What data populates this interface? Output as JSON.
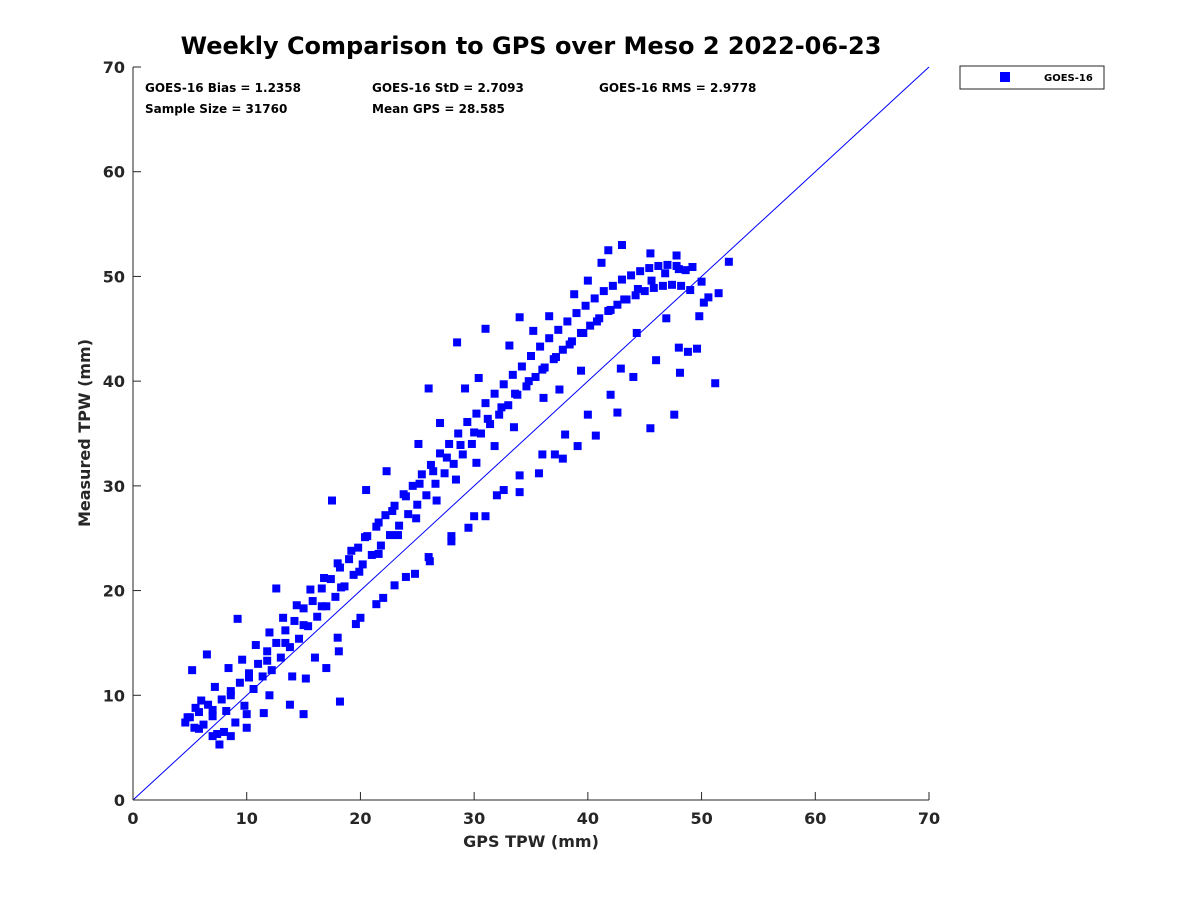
{
  "chart_data": {
    "type": "scatter",
    "title": "Weekly Comparison to GPS over Meso 2 2022-06-23",
    "xlabel": "GPS TPW (mm)",
    "ylabel": "Measured TPW (mm)",
    "xlim": [
      0,
      70
    ],
    "ylim": [
      0,
      70
    ],
    "xticks": [
      0,
      10,
      20,
      30,
      40,
      50,
      60,
      70
    ],
    "yticks": [
      0,
      10,
      20,
      30,
      40,
      50,
      60,
      70
    ],
    "xtick_labels": [
      "0",
      "10",
      "20",
      "30",
      "40",
      "50",
      "60",
      "70"
    ],
    "ytick_labels": [
      "0",
      "10",
      "20",
      "30",
      "40",
      "50",
      "60",
      "70"
    ],
    "grid": false,
    "legend_placement": "outside-top-right",
    "reference_line": {
      "from": [
        0,
        0
      ],
      "to": [
        70,
        70
      ],
      "color": "#0000ff"
    },
    "stats": [
      {
        "text": "GOES-16 Bias = 1.2358"
      },
      {
        "text": "GOES-16 StD = 2.7093"
      },
      {
        "text": "GOES-16 RMS = 2.9778"
      },
      {
        "text": "Sample Size = 31760"
      },
      {
        "text": "Mean GPS = 28.585"
      }
    ],
    "series": [
      {
        "name": "GOES-16",
        "color": "#0000ff",
        "marker": "square",
        "points": [
          [
            4.6,
            7.4
          ],
          [
            5.0,
            7.9
          ],
          [
            5.4,
            6.9
          ],
          [
            5.8,
            8.4
          ],
          [
            6.2,
            7.2
          ],
          [
            6.6,
            9.1
          ],
          [
            7.0,
            8.0
          ],
          [
            7.4,
            6.3
          ],
          [
            7.8,
            9.6
          ],
          [
            8.2,
            8.5
          ],
          [
            8.6,
            10.4
          ],
          [
            9.0,
            7.4
          ],
          [
            9.4,
            11.2
          ],
          [
            9.8,
            9.0
          ],
          [
            10.2,
            12.1
          ],
          [
            10.6,
            10.6
          ],
          [
            11.0,
            13.0
          ],
          [
            11.4,
            11.8
          ],
          [
            11.8,
            14.2
          ],
          [
            12.2,
            12.4
          ],
          [
            12.6,
            15.0
          ],
          [
            13.0,
            13.6
          ],
          [
            13.4,
            16.2
          ],
          [
            13.8,
            14.6
          ],
          [
            14.2,
            17.1
          ],
          [
            14.6,
            15.4
          ],
          [
            15.0,
            18.3
          ],
          [
            15.4,
            16.6
          ],
          [
            15.8,
            19.0
          ],
          [
            16.2,
            17.5
          ],
          [
            16.6,
            20.2
          ],
          [
            17.0,
            18.5
          ],
          [
            17.4,
            21.1
          ],
          [
            17.8,
            19.4
          ],
          [
            18.2,
            22.2
          ],
          [
            18.6,
            20.4
          ],
          [
            19.0,
            23.0
          ],
          [
            19.4,
            21.5
          ],
          [
            19.8,
            24.1
          ],
          [
            20.2,
            22.5
          ],
          [
            20.6,
            25.2
          ],
          [
            21.0,
            23.4
          ],
          [
            21.4,
            26.1
          ],
          [
            21.8,
            24.3
          ],
          [
            22.2,
            27.2
          ],
          [
            22.6,
            25.3
          ],
          [
            23.0,
            28.1
          ],
          [
            23.4,
            26.2
          ],
          [
            23.8,
            29.2
          ],
          [
            24.2,
            27.3
          ],
          [
            24.6,
            30.0
          ],
          [
            25.0,
            28.2
          ],
          [
            25.4,
            31.1
          ],
          [
            25.8,
            29.1
          ],
          [
            26.2,
            32.0
          ],
          [
            26.6,
            30.2
          ],
          [
            27.0,
            33.1
          ],
          [
            27.4,
            31.2
          ],
          [
            27.8,
            34.0
          ],
          [
            28.2,
            32.1
          ],
          [
            28.6,
            35.0
          ],
          [
            29.0,
            33.0
          ],
          [
            29.4,
            36.1
          ],
          [
            29.8,
            34.0
          ],
          [
            30.2,
            36.9
          ],
          [
            30.6,
            35.0
          ],
          [
            31.0,
            37.9
          ],
          [
            31.4,
            35.9
          ],
          [
            31.8,
            38.8
          ],
          [
            32.2,
            36.8
          ],
          [
            32.6,
            39.7
          ],
          [
            33.0,
            37.7
          ],
          [
            33.4,
            40.6
          ],
          [
            33.8,
            38.7
          ],
          [
            34.2,
            41.4
          ],
          [
            34.6,
            39.5
          ],
          [
            35.0,
            42.4
          ],
          [
            35.4,
            40.4
          ],
          [
            35.8,
            43.3
          ],
          [
            36.2,
            41.3
          ],
          [
            36.6,
            44.1
          ],
          [
            37.0,
            42.1
          ],
          [
            37.4,
            44.9
          ],
          [
            37.8,
            43.0
          ],
          [
            38.2,
            45.7
          ],
          [
            38.6,
            43.8
          ],
          [
            39.0,
            46.5
          ],
          [
            39.4,
            44.6
          ],
          [
            39.8,
            47.2
          ],
          [
            40.2,
            45.3
          ],
          [
            40.6,
            47.9
          ],
          [
            41.0,
            46.0
          ],
          [
            41.4,
            48.6
          ],
          [
            41.8,
            46.7
          ],
          [
            42.2,
            49.1
          ],
          [
            42.6,
            47.3
          ],
          [
            43.0,
            49.7
          ],
          [
            43.4,
            47.8
          ],
          [
            43.8,
            50.1
          ],
          [
            44.2,
            48.2
          ],
          [
            44.6,
            50.5
          ],
          [
            45.0,
            48.6
          ],
          [
            45.4,
            50.8
          ],
          [
            45.8,
            48.9
          ],
          [
            46.2,
            51.0
          ],
          [
            46.6,
            49.1
          ],
          [
            47.0,
            51.1
          ],
          [
            47.4,
            49.2
          ],
          [
            47.8,
            51.0
          ],
          [
            48.2,
            49.1
          ],
          [
            48.6,
            50.6
          ],
          [
            49.0,
            48.7
          ],
          [
            6.0,
            9.5
          ],
          [
            7.2,
            10.8
          ],
          [
            8.4,
            12.6
          ],
          [
            9.6,
            13.4
          ],
          [
            10.8,
            14.8
          ],
          [
            12.0,
            16.0
          ],
          [
            13.2,
            17.4
          ],
          [
            14.4,
            18.6
          ],
          [
            15.6,
            20.1
          ],
          [
            16.8,
            21.2
          ],
          [
            18.0,
            22.6
          ],
          [
            19.2,
            23.8
          ],
          [
            20.4,
            25.1
          ],
          [
            21.6,
            26.5
          ],
          [
            22.8,
            27.6
          ],
          [
            24.0,
            29.0
          ],
          [
            25.2,
            30.2
          ],
          [
            26.4,
            31.4
          ],
          [
            27.6,
            32.7
          ],
          [
            28.8,
            33.9
          ],
          [
            30.0,
            35.1
          ],
          [
            31.2,
            36.4
          ],
          [
            32.4,
            37.5
          ],
          [
            33.6,
            38.8
          ],
          [
            34.8,
            40.0
          ],
          [
            36.0,
            41.1
          ],
          [
            37.2,
            42.3
          ],
          [
            38.4,
            43.5
          ],
          [
            39.6,
            44.6
          ],
          [
            40.8,
            45.7
          ],
          [
            42.0,
            46.8
          ],
          [
            43.2,
            47.8
          ],
          [
            44.4,
            48.8
          ],
          [
            45.6,
            49.6
          ],
          [
            46.8,
            50.3
          ],
          [
            48.0,
            50.7
          ],
          [
            49.2,
            50.9
          ],
          [
            50.0,
            49.5
          ],
          [
            50.6,
            48.0
          ],
          [
            49.8,
            46.2
          ],
          [
            8.0,
            6.5
          ],
          [
            10.0,
            8.2
          ],
          [
            12.0,
            10.0
          ],
          [
            14.0,
            11.8
          ],
          [
            16.0,
            13.6
          ],
          [
            18.0,
            15.5
          ],
          [
            20.0,
            17.4
          ],
          [
            22.0,
            19.3
          ],
          [
            24.0,
            21.3
          ],
          [
            26.0,
            23.2
          ],
          [
            28.0,
            25.2
          ],
          [
            30.0,
            27.1
          ],
          [
            32.0,
            29.1
          ],
          [
            34.0,
            31.0
          ],
          [
            36.0,
            33.0
          ],
          [
            38.0,
            34.9
          ],
          [
            40.0,
            36.8
          ],
          [
            42.0,
            38.7
          ],
          [
            44.0,
            40.4
          ],
          [
            46.0,
            42.0
          ],
          [
            48.0,
            43.2
          ],
          [
            20.5,
            29.6
          ],
          [
            22.3,
            31.4
          ],
          [
            25.1,
            34.0
          ],
          [
            27.0,
            36.0
          ],
          [
            29.2,
            39.3
          ],
          [
            30.4,
            40.3
          ],
          [
            33.1,
            43.4
          ],
          [
            35.2,
            44.8
          ],
          [
            36.6,
            46.2
          ],
          [
            38.8,
            48.3
          ],
          [
            40.0,
            49.6
          ],
          [
            41.2,
            51.3
          ],
          [
            41.8,
            52.5
          ],
          [
            43.0,
            53.0
          ],
          [
            45.5,
            52.2
          ],
          [
            47.8,
            52.0
          ],
          [
            17.5,
            28.6
          ],
          [
            12.6,
            20.2
          ],
          [
            9.2,
            17.3
          ],
          [
            28.5,
            43.7
          ],
          [
            31.0,
            45.0
          ],
          [
            26.0,
            39.3
          ],
          [
            34.0,
            46.1
          ],
          [
            52.4,
            51.4
          ],
          [
            51.5,
            48.4
          ],
          [
            50.2,
            47.5
          ],
          [
            49.6,
            43.1
          ],
          [
            48.8,
            42.8
          ],
          [
            51.2,
            39.8
          ],
          [
            48.1,
            40.8
          ],
          [
            47.6,
            36.8
          ],
          [
            45.5,
            35.5
          ],
          [
            42.6,
            37.0
          ],
          [
            40.7,
            34.8
          ],
          [
            39.1,
            33.8
          ],
          [
            37.1,
            33.0
          ],
          [
            35.7,
            31.2
          ],
          [
            34.0,
            29.4
          ],
          [
            32.6,
            29.6
          ],
          [
            31.0,
            27.1
          ],
          [
            29.5,
            26.0
          ],
          [
            28.0,
            24.7
          ],
          [
            26.1,
            22.8
          ],
          [
            24.8,
            21.6
          ],
          [
            23.0,
            20.5
          ],
          [
            21.4,
            18.7
          ],
          [
            19.6,
            16.8
          ],
          [
            18.1,
            14.2
          ],
          [
            17.0,
            12.6
          ],
          [
            15.2,
            11.6
          ],
          [
            13.8,
            9.1
          ],
          [
            15.0,
            8.2
          ],
          [
            18.2,
            9.4
          ],
          [
            11.5,
            8.3
          ],
          [
            10.0,
            6.9
          ],
          [
            8.6,
            6.1
          ],
          [
            7.6,
            5.3
          ],
          [
            7.0,
            6.1
          ],
          [
            5.5,
            8.8
          ],
          [
            5.2,
            12.4
          ],
          [
            6.5,
            13.9
          ],
          [
            4.8,
            7.9
          ],
          [
            5.8,
            6.8
          ],
          [
            37.8,
            32.6
          ],
          [
            42.9,
            41.2
          ],
          [
            44.3,
            44.6
          ],
          [
            46.9,
            46.0
          ],
          [
            39.4,
            41.0
          ],
          [
            37.5,
            39.2
          ],
          [
            36.1,
            38.4
          ],
          [
            33.5,
            35.6
          ],
          [
            31.8,
            33.8
          ],
          [
            30.2,
            32.2
          ],
          [
            28.4,
            30.6
          ],
          [
            26.7,
            28.6
          ],
          [
            24.9,
            26.9
          ],
          [
            23.3,
            25.3
          ],
          [
            21.6,
            23.5
          ],
          [
            19.9,
            21.8
          ],
          [
            18.3,
            20.3
          ],
          [
            16.6,
            18.5
          ],
          [
            15.0,
            16.7
          ],
          [
            13.4,
            15.0
          ],
          [
            11.8,
            13.3
          ],
          [
            10.2,
            11.7
          ],
          [
            8.6,
            10.0
          ],
          [
            7.0,
            8.6
          ]
        ]
      }
    ]
  }
}
